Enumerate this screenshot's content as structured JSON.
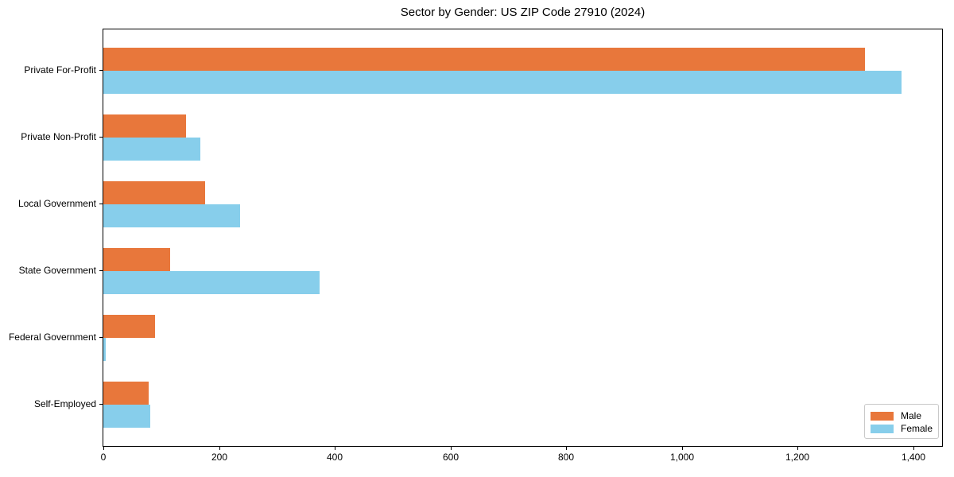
{
  "chart_data": {
    "type": "bar",
    "orientation": "horizontal",
    "title": "Sector by Gender: US ZIP Code 27910 (2024)",
    "categories": [
      "Private For-Profit",
      "Private Non-Profit",
      "Local Government",
      "State Government",
      "Federal Government",
      "Self-Employed"
    ],
    "series": [
      {
        "name": "Male",
        "color": "#e8773b",
        "values": [
          1317,
          143,
          176,
          115,
          90,
          79
        ]
      },
      {
        "name": "Female",
        "color": "#87ceeb",
        "values": [
          1380,
          167,
          236,
          374,
          4,
          81
        ]
      }
    ],
    "xlim": [
      0,
      1450
    ],
    "x_ticks": [
      0,
      200,
      400,
      600,
      800,
      1000,
      1200,
      1400
    ],
    "x_tick_labels": [
      "0",
      "200",
      "400",
      "600",
      "800",
      "1,000",
      "1,200",
      "1,400"
    ],
    "grid": false,
    "legend": {
      "position": "lower right",
      "entries": [
        "Male",
        "Female"
      ]
    },
    "axis_color": "#000000",
    "background_color": "#ffffff"
  }
}
